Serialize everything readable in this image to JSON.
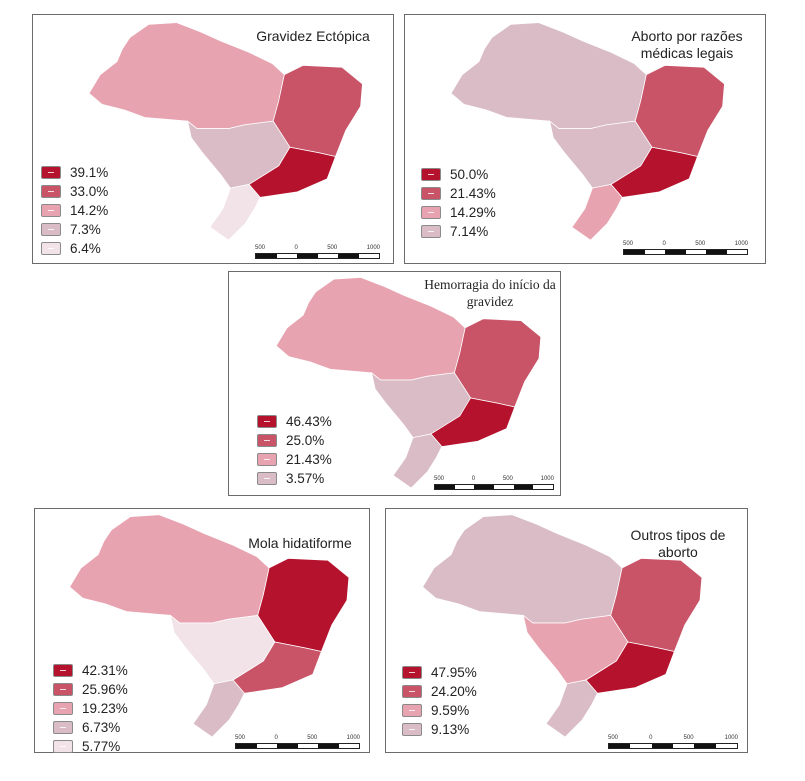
{
  "maps": [
    {
      "id": "p1",
      "title": "Gravidez Ectópica",
      "legend": [
        {
          "label": "39.1%",
          "color": "#b5122e"
        },
        {
          "label": "33.0%",
          "color": "#c95468"
        },
        {
          "label": "14.2%",
          "color": "#e8a3b1"
        },
        {
          "label": "7.3%",
          "color": "#d9bcc6"
        },
        {
          "label": "6.4%",
          "color": "#f1e3e8"
        }
      ],
      "regions": {
        "north": "#e8a3b1",
        "northeast": "#c95468",
        "centerwest": "#d9bcc6",
        "southeast": "#b5122e",
        "south": "#f1e3e8"
      }
    },
    {
      "id": "p2",
      "title": "Aborto por razões médicas legais",
      "legend": [
        {
          "label": "50.0%",
          "color": "#b5122e"
        },
        {
          "label": "21.43%",
          "color": "#c95468"
        },
        {
          "label": "14.29%",
          "color": "#e8a3b1"
        },
        {
          "label": "7.14%",
          "color": "#d9bcc6"
        }
      ],
      "regions": {
        "north": "#d9bcc6",
        "northeast": "#c95468",
        "centerwest": "#d9bcc6",
        "southeast": "#b5122e",
        "south": "#e8a3b1"
      }
    },
    {
      "id": "p3",
      "title": "Hemorragia do início da gravidez",
      "legend": [
        {
          "label": "46.43%",
          "color": "#b5122e"
        },
        {
          "label": "25.0%",
          "color": "#c95468"
        },
        {
          "label": "21.43%",
          "color": "#e8a3b1"
        },
        {
          "label": "3.57%",
          "color": "#d9bcc6"
        }
      ],
      "regions": {
        "north": "#e8a3b1",
        "northeast": "#c95468",
        "centerwest": "#d9bcc6",
        "southeast": "#b5122e",
        "south": "#d9bcc6"
      }
    },
    {
      "id": "p4",
      "title": "Mola hidatiforme",
      "legend": [
        {
          "label": "42.31%",
          "color": "#b5122e"
        },
        {
          "label": "25.96%",
          "color": "#c95468"
        },
        {
          "label": "19.23%",
          "color": "#e8a3b1"
        },
        {
          "label": "6.73%",
          "color": "#d9bcc6"
        },
        {
          "label": "5.77%",
          "color": "#f1e3e8"
        }
      ],
      "regions": {
        "north": "#e8a3b1",
        "northeast": "#b5122e",
        "centerwest": "#f1e3e8",
        "southeast": "#c95468",
        "south": "#d9bcc6"
      }
    },
    {
      "id": "p5",
      "title": "Outros tipos de aborto",
      "legend": [
        {
          "label": "47.95%",
          "color": "#b5122e"
        },
        {
          "label": "24.20%",
          "color": "#c95468"
        },
        {
          "label": "9.59%",
          "color": "#e8a3b1"
        },
        {
          "label": "9.13%",
          "color": "#d9bcc6"
        }
      ],
      "regions": {
        "north": "#d9bcc6",
        "northeast": "#c95468",
        "centerwest": "#e8a3b1",
        "southeast": "#b5122e",
        "south": "#d9bcc6"
      }
    }
  ],
  "scale_ticks": [
    "500",
    "0",
    "500",
    "1000"
  ]
}
